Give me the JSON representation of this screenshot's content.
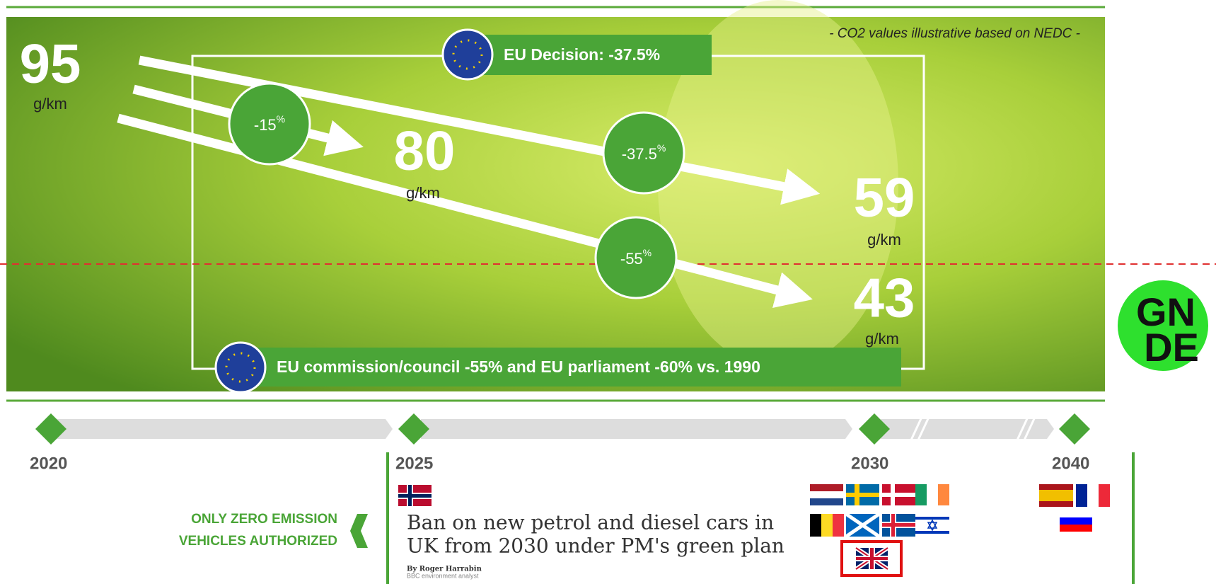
{
  "note": "- CO2 values illustrative based on NEDC -",
  "targets": [
    {
      "value": "95",
      "unit": "g/km"
    },
    {
      "value": "80",
      "unit": "g/km"
    },
    {
      "value": "59",
      "unit": "g/km"
    },
    {
      "value": "43",
      "unit": "g/km"
    }
  ],
  "reductions": [
    {
      "value": "-15",
      "unit": "%"
    },
    {
      "value": "-37.5",
      "unit": "%"
    },
    {
      "value": "-55",
      "unit": "%"
    }
  ],
  "banners": {
    "decision": "EU Decision: -37.5%",
    "proposal": "EU commission/council -55% and EU parliament -60% vs. 1990"
  },
  "timeline": {
    "years": [
      "2020",
      "2025",
      "2030",
      "2040"
    ]
  },
  "zero_emission": [
    "ONLY ZERO EMISSION",
    "VEHICLES AUTHORIZED"
  ],
  "article": {
    "headline": [
      "Ban on new petrol and diesel cars in",
      "UK from 2030 under PM's green plan"
    ],
    "author": "By Roger Harrabin",
    "role": "BBC environment analyst"
  },
  "logo": {
    "line1": "GN",
    "line2": "DE"
  }
}
